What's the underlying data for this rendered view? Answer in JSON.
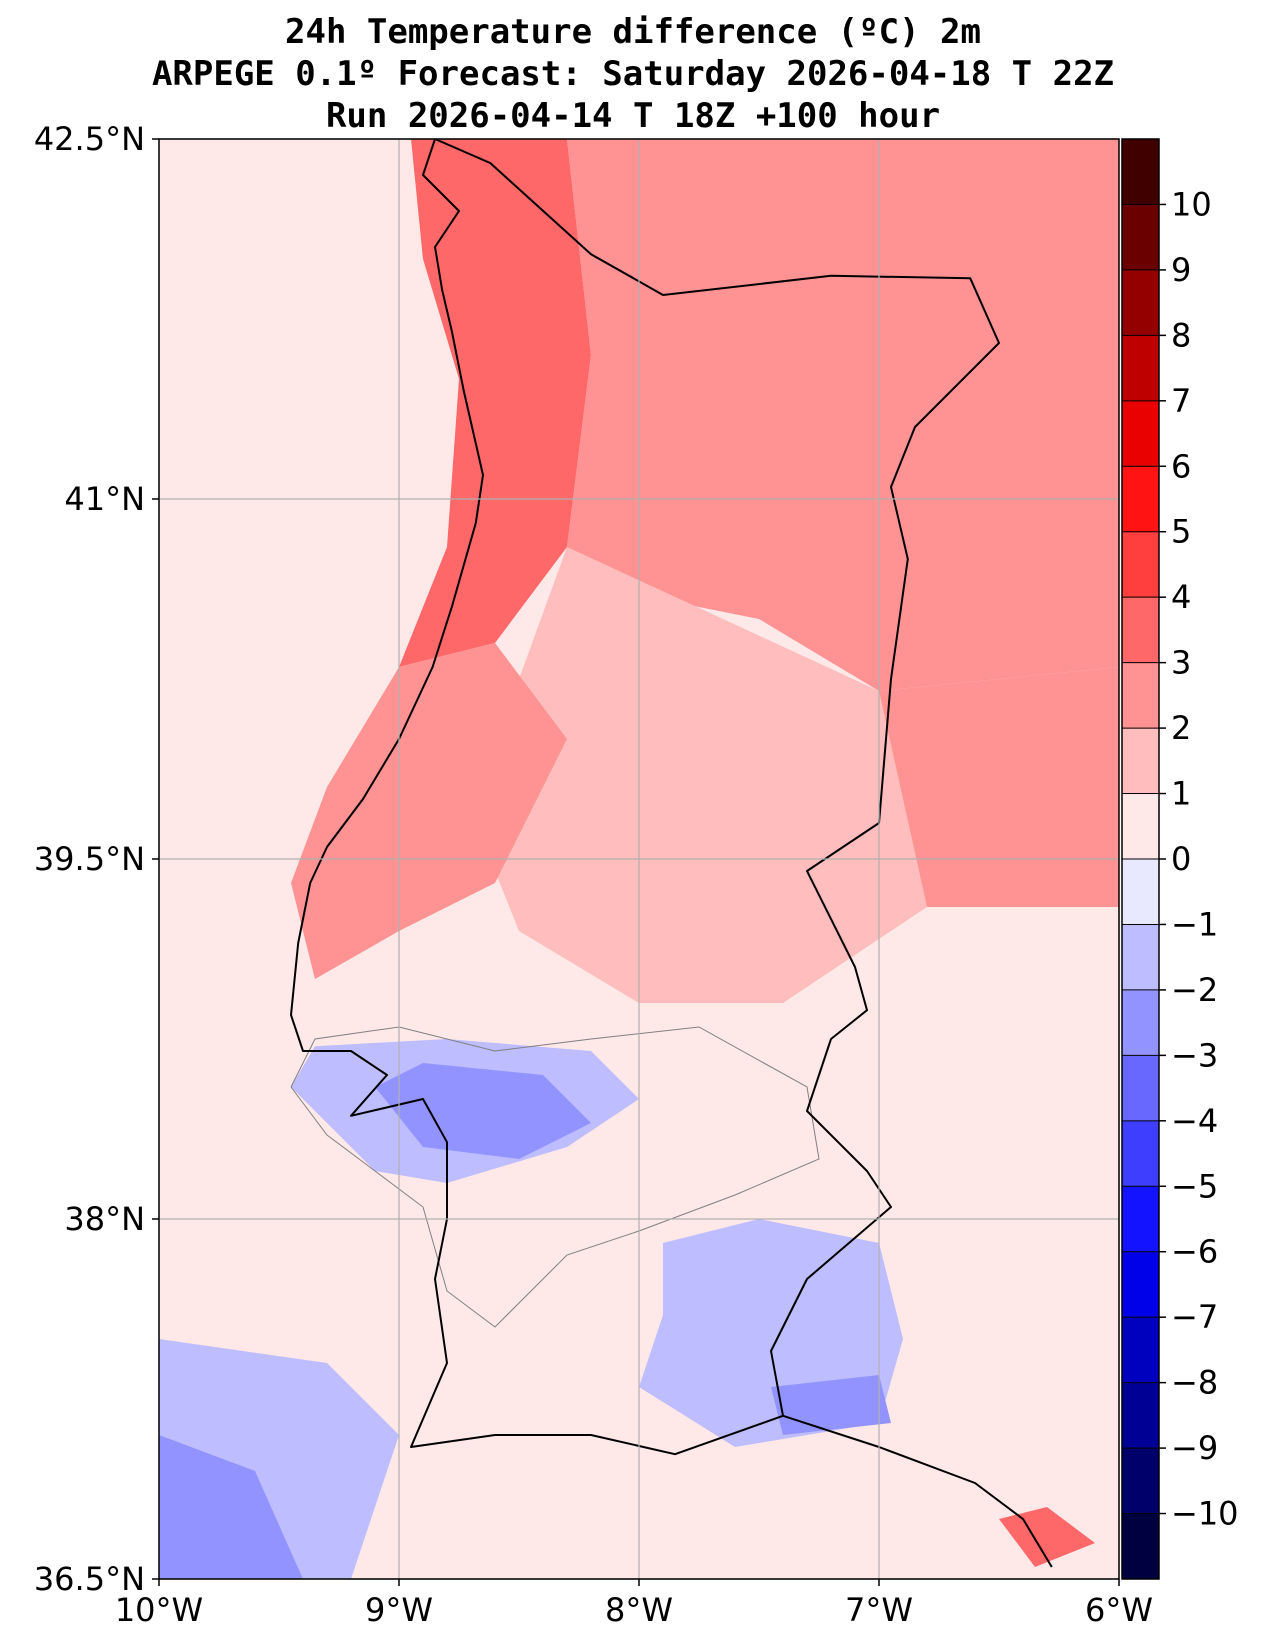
{
  "title": {
    "line1": "24h Temperature difference (ºC) 2m",
    "line2": "ARPEGE 0.1º Forecast: Saturday 2026-04-18 T 22Z",
    "line3": "Run 2026-04-14 T 18Z +100 hour"
  },
  "map": {
    "lon_range": [
      -10,
      -6
    ],
    "lat_range": [
      36.5,
      42.5
    ],
    "lon_ticks": [
      {
        "value": -10,
        "label": "10°W"
      },
      {
        "value": -9,
        "label": "9°W"
      },
      {
        "value": -8,
        "label": "8°W"
      },
      {
        "value": -7,
        "label": "7°W"
      },
      {
        "value": -6,
        "label": "6°W"
      }
    ],
    "lat_ticks": [
      {
        "value": 42.5,
        "label": "42.5°N"
      },
      {
        "value": 41,
        "label": "41°N"
      },
      {
        "value": 39.5,
        "label": "39.5°N"
      },
      {
        "value": 38,
        "label": "38°N"
      },
      {
        "value": 36.5,
        "label": "36.5°N"
      }
    ],
    "coastline_lonlat": [
      [
        -8.85,
        42.5
      ],
      [
        -8.9,
        42.35
      ],
      [
        -8.75,
        42.2
      ],
      [
        -8.85,
        42.05
      ],
      [
        -8.82,
        41.87
      ],
      [
        -8.78,
        41.7
      ],
      [
        -8.73,
        41.45
      ],
      [
        -8.65,
        41.1
      ],
      [
        -8.68,
        40.9
      ],
      [
        -8.78,
        40.55
      ],
      [
        -8.86,
        40.3
      ],
      [
        -9.0,
        40.0
      ],
      [
        -9.15,
        39.75
      ],
      [
        -9.3,
        39.55
      ],
      [
        -9.37,
        39.4
      ],
      [
        -9.42,
        39.15
      ],
      [
        -9.45,
        38.85
      ],
      [
        -9.4,
        38.7
      ],
      [
        -9.2,
        38.7
      ],
      [
        -9.05,
        38.6
      ],
      [
        -9.2,
        38.43
      ],
      [
        -8.9,
        38.5
      ],
      [
        -8.8,
        38.32
      ],
      [
        -8.8,
        38.0
      ],
      [
        -8.85,
        37.75
      ],
      [
        -8.8,
        37.4
      ],
      [
        -8.95,
        37.05
      ],
      [
        -8.6,
        37.1
      ],
      [
        -8.2,
        37.1
      ],
      [
        -7.85,
        37.02
      ],
      [
        -7.4,
        37.18
      ],
      [
        -7.0,
        37.05
      ],
      [
        -6.6,
        36.9
      ],
      [
        -6.4,
        36.75
      ],
      [
        -6.28,
        36.55
      ]
    ],
    "border_lonlat": [
      [
        -8.85,
        42.5
      ],
      [
        -8.62,
        42.4
      ],
      [
        -8.2,
        42.02
      ],
      [
        -7.9,
        41.85
      ],
      [
        -7.2,
        41.93
      ],
      [
        -6.62,
        41.92
      ],
      [
        -6.5,
        41.65
      ],
      [
        -6.85,
        41.3
      ],
      [
        -6.95,
        41.05
      ],
      [
        -6.88,
        40.75
      ],
      [
        -6.95,
        40.25
      ],
      [
        -7.0,
        39.65
      ],
      [
        -7.3,
        39.45
      ],
      [
        -7.1,
        39.05
      ],
      [
        -7.05,
        38.87
      ],
      [
        -7.2,
        38.75
      ],
      [
        -7.3,
        38.45
      ],
      [
        -7.05,
        38.2
      ],
      [
        -6.95,
        38.05
      ],
      [
        -7.3,
        37.75
      ],
      [
        -7.45,
        37.45
      ],
      [
        -7.4,
        37.18
      ]
    ],
    "contour_zero_lonlat": [
      [
        -9.45,
        38.55
      ],
      [
        -9.3,
        38.35
      ],
      [
        -9.1,
        38.2
      ],
      [
        -8.9,
        38.05
      ],
      [
        -8.8,
        37.7
      ],
      [
        -8.6,
        37.55
      ],
      [
        -8.3,
        37.85
      ],
      [
        -8.0,
        37.95
      ],
      [
        -7.6,
        38.1
      ],
      [
        -7.25,
        38.25
      ],
      [
        -7.3,
        38.55
      ],
      [
        -7.75,
        38.8
      ],
      [
        -8.2,
        38.75
      ],
      [
        -8.6,
        38.7
      ],
      [
        -9.0,
        38.8
      ],
      [
        -9.35,
        38.75
      ],
      [
        -9.45,
        38.55
      ]
    ]
  },
  "chart_data": {
    "type": "heatmap",
    "title": "24h Temperature difference (ºC) 2m",
    "variable": "2m temperature difference over 24h",
    "units": "ºC",
    "model": "ARPEGE 0.1º",
    "valid_time": "Saturday 2026-04-18 T 22Z",
    "run": "Run 2026-04-14 T 18Z +100 hour",
    "xlim": [
      -10,
      -6
    ],
    "ylim": [
      36.5,
      42.5
    ],
    "colorbar": {
      "levels": [
        -11,
        -10,
        -9,
        -8,
        -7,
        -6,
        -5,
        -4,
        -3,
        -2,
        -1,
        0,
        1,
        2,
        3,
        4,
        5,
        6,
        7,
        8,
        9,
        10,
        11
      ],
      "tick_values": [
        -10,
        -9,
        -8,
        -7,
        -6,
        -5,
        -4,
        -3,
        -2,
        -1,
        0,
        1,
        2,
        3,
        4,
        5,
        6,
        7,
        8,
        9,
        10
      ],
      "tick_labels": [
        "−10",
        "−9",
        "−8",
        "−7",
        "−6",
        "−5",
        "−4",
        "−3",
        "−2",
        "−1",
        "0",
        "1",
        "2",
        "3",
        "4",
        "5",
        "6",
        "7",
        "8",
        "9",
        "10"
      ],
      "colors": [
        "#000040",
        "#00006a",
        "#000094",
        "#0000bf",
        "#0000e9",
        "#1313ff",
        "#3e3eff",
        "#6868ff",
        "#9393ff",
        "#bdbdff",
        "#e8e8ff",
        "#ffe8e8",
        "#ffbdbd",
        "#ff9393",
        "#ff6868",
        "#ff3e3e",
        "#ff1313",
        "#e90000",
        "#bf0000",
        "#940000",
        "#6a0000",
        "#400000"
      ]
    },
    "regions": [
      {
        "name": "background-ocean-north",
        "value": 0.5,
        "points": [
          [
            -10,
            42.5
          ],
          [
            -8.9,
            42.5
          ],
          [
            -8.7,
            41.0
          ],
          [
            -9.0,
            40.0
          ],
          [
            -9.5,
            39.0
          ],
          [
            -9.6,
            38.4
          ],
          [
            -10,
            38.2
          ]
        ]
      },
      {
        "name": "north-portugal-coast",
        "value": 3.5,
        "points": [
          [
            -8.95,
            42.5
          ],
          [
            -8.3,
            42.5
          ],
          [
            -8.2,
            41.6
          ],
          [
            -8.3,
            40.8
          ],
          [
            -8.6,
            40.4
          ],
          [
            -9.0,
            40.3
          ],
          [
            -8.8,
            40.8
          ],
          [
            -8.75,
            41.5
          ],
          [
            -8.9,
            42.0
          ]
        ]
      },
      {
        "name": "north-interior",
        "value": 2.5,
        "points": [
          [
            -8.3,
            42.5
          ],
          [
            -6,
            42.5
          ],
          [
            -6,
            40.3
          ],
          [
            -7.0,
            40.2
          ],
          [
            -7.5,
            40.5
          ],
          [
            -8.0,
            40.6
          ],
          [
            -8.3,
            40.8
          ],
          [
            -8.2,
            41.6
          ]
        ]
      },
      {
        "name": "central-interior",
        "value": 1.5,
        "points": [
          [
            -8.3,
            40.8
          ],
          [
            -7.0,
            40.2
          ],
          [
            -6.8,
            39.3
          ],
          [
            -7.4,
            38.9
          ],
          [
            -8.0,
            38.9
          ],
          [
            -8.5,
            39.2
          ],
          [
            -8.7,
            39.7
          ]
        ]
      },
      {
        "name": "central-west",
        "value": 2.5,
        "points": [
          [
            -9.0,
            40.3
          ],
          [
            -8.6,
            40.4
          ],
          [
            -8.3,
            40.0
          ],
          [
            -8.6,
            39.4
          ],
          [
            -9.0,
            39.2
          ],
          [
            -9.35,
            39.0
          ],
          [
            -9.45,
            39.4
          ],
          [
            -9.3,
            39.8
          ]
        ]
      },
      {
        "name": "east-interior",
        "value": 2.2,
        "points": [
          [
            -6,
            40.3
          ],
          [
            -7.0,
            40.2
          ],
          [
            -6.8,
            39.3
          ],
          [
            -6,
            39.3
          ]
        ]
      },
      {
        "name": "lisbon-cool-area",
        "value": -1.5,
        "points": [
          [
            -9.45,
            38.55
          ],
          [
            -9.1,
            38.2
          ],
          [
            -8.8,
            38.15
          ],
          [
            -8.3,
            38.3
          ],
          [
            -8.0,
            38.5
          ],
          [
            -8.2,
            38.7
          ],
          [
            -8.8,
            38.75
          ],
          [
            -9.35,
            38.72
          ]
        ]
      },
      {
        "name": "lisbon-cold-core",
        "value": -2.5,
        "points": [
          [
            -9.1,
            38.55
          ],
          [
            -8.9,
            38.3
          ],
          [
            -8.5,
            38.25
          ],
          [
            -8.2,
            38.4
          ],
          [
            -8.4,
            38.6
          ],
          [
            -8.9,
            38.65
          ]
        ]
      },
      {
        "name": "southeast-cool-area",
        "value": -1.5,
        "points": [
          [
            -7.9,
            37.9
          ],
          [
            -7.5,
            38.0
          ],
          [
            -7.0,
            37.9
          ],
          [
            -6.9,
            37.5
          ],
          [
            -7.0,
            37.15
          ],
          [
            -7.6,
            37.05
          ],
          [
            -8.0,
            37.3
          ],
          [
            -7.9,
            37.6
          ]
        ]
      },
      {
        "name": "southeast-cold-core",
        "value": -2.5,
        "points": [
          [
            -7.45,
            37.3
          ],
          [
            -7.0,
            37.35
          ],
          [
            -6.95,
            37.15
          ],
          [
            -7.4,
            37.1
          ]
        ]
      },
      {
        "name": "southwest-ocean-cool",
        "value": -1.5,
        "points": [
          [
            -10,
            37.5
          ],
          [
            -9.3,
            37.4
          ],
          [
            -9.0,
            37.1
          ],
          [
            -9.2,
            36.5
          ],
          [
            -10,
            36.5
          ]
        ]
      },
      {
        "name": "southwest-ocean-cold",
        "value": -2.5,
        "points": [
          [
            -10,
            37.1
          ],
          [
            -9.6,
            36.95
          ],
          [
            -9.4,
            36.5
          ],
          [
            -10,
            36.5
          ]
        ]
      },
      {
        "name": "gulf-cadiz-warm-spot",
        "value": 3.5,
        "points": [
          [
            -6.5,
            36.75
          ],
          [
            -6.3,
            36.8
          ],
          [
            -6.1,
            36.65
          ],
          [
            -6.35,
            36.55
          ]
        ]
      }
    ]
  }
}
